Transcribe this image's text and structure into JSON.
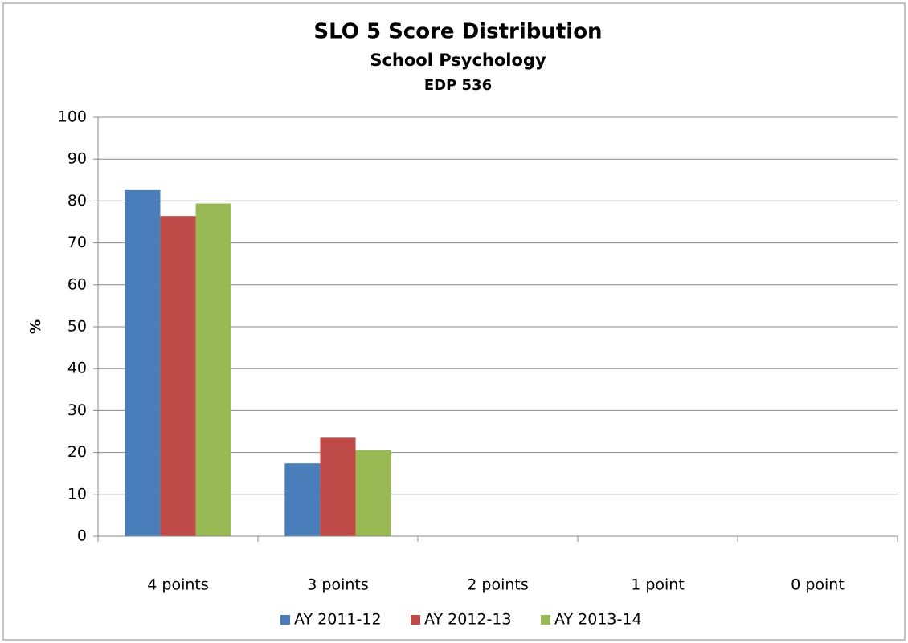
{
  "chart_data": {
    "type": "bar",
    "title": "SLO 5 Score Distribution",
    "subtitle": "School Psychology",
    "subtitle2": "EDP 536",
    "y_label": "%",
    "categories": [
      "4 points",
      "3 points",
      "2 points",
      "1 point",
      "0 point"
    ],
    "series": [
      {
        "name": "AY 2011-12",
        "color": "#4a7ebb",
        "values": [
          82.6,
          17.4,
          0,
          0,
          0
        ]
      },
      {
        "name": "AY 2012-13",
        "color": "#be4b48",
        "values": [
          76.4,
          23.5,
          0,
          0,
          0
        ]
      },
      {
        "name": "AY 2013-14",
        "color": "#98b954",
        "values": [
          79.4,
          20.6,
          0,
          0,
          0
        ]
      }
    ],
    "ylim": [
      0,
      100
    ],
    "yticks": [
      0,
      10,
      20,
      30,
      40,
      50,
      60,
      70,
      80,
      90,
      100
    ],
    "grid": true,
    "legend": "bottom"
  }
}
